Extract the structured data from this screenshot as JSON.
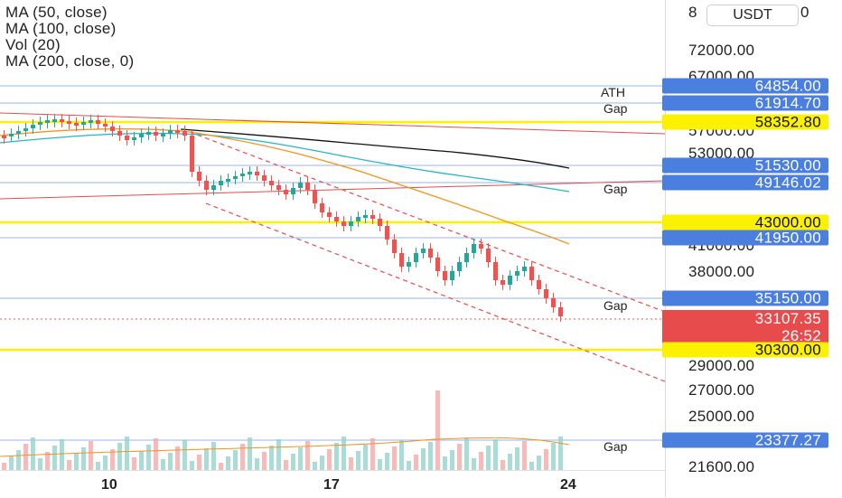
{
  "legend": [
    "MA (50, close)",
    "MA (100, close)",
    "Vol (20)",
    "MA (200, close, 0)"
  ],
  "currency": "USDT",
  "price_axis": {
    "ticks": [
      "72000.00",
      "67000.00",
      "57000.00",
      "53000.00",
      "41000.00",
      "38000.00",
      "29000.00",
      "27000.00",
      "25000.00",
      "21600.00"
    ],
    "partial_top": [
      "8",
      "0"
    ]
  },
  "level_labels": [
    {
      "value": "64854.00",
      "style": "blue"
    },
    {
      "value": "61914.70",
      "style": "blue"
    },
    {
      "value": "58352.80",
      "style": "yellow"
    },
    {
      "value": "51530.00",
      "style": "blue"
    },
    {
      "value": "49146.02",
      "style": "blue"
    },
    {
      "value": "43000.00",
      "style": "yellow"
    },
    {
      "value": "41950.00",
      "style": "blue"
    },
    {
      "value": "35150.00",
      "style": "blue"
    },
    {
      "value": "30300.00",
      "style": "yellow"
    },
    {
      "value": "23377.27",
      "style": "blue"
    }
  ],
  "current_price": {
    "value": "33107.35",
    "countdown": "26:52"
  },
  "tags": [
    {
      "text": "ATH"
    },
    {
      "text": "Gap"
    },
    {
      "text": "Gap"
    },
    {
      "text": "Gap"
    },
    {
      "text": "Gap"
    }
  ],
  "time_axis": [
    "10",
    "17",
    "24"
  ],
  "colors": {
    "up": "#26a69a",
    "down": "#ef5350",
    "level_blue": "#4a7fe0",
    "level_yellow": "#fcf100",
    "ma50": "#f7931a",
    "ma100": "#26b5c9",
    "ma200": "#111111",
    "trend_red": "#e84b4b"
  }
}
